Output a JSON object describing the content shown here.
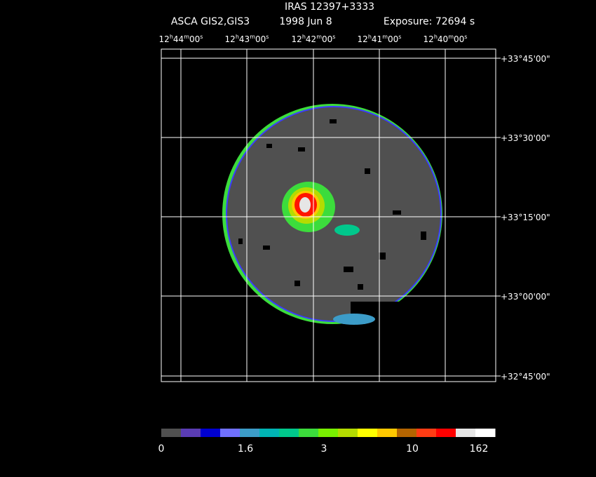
{
  "header": {
    "title": "IRAS 12397+3333",
    "instrument": "ASCA GIS2,GIS3",
    "date": "1998 Jun  8",
    "exposure": "Exposure: 72694 s"
  },
  "ra_labels": [
    [
      "12",
      "h",
      "44",
      "m",
      "00",
      "s"
    ],
    [
      "12",
      "h",
      "43",
      "m",
      "00",
      "s"
    ],
    [
      "12",
      "h",
      "42",
      "m",
      "00",
      "s"
    ],
    [
      "12",
      "h",
      "41",
      "m",
      "00",
      "s"
    ],
    [
      "12",
      "h",
      "40",
      "m",
      "00",
      "s"
    ]
  ],
  "dec_labels": [
    "+33°45'00\"",
    "+33°30'00\"",
    "+33°15'00\"",
    "+33°00'00\"",
    "+32°45'00\""
  ],
  "colorbar": {
    "colors": [
      "#505050",
      "#5a3cb4",
      "#0000d2",
      "#7070ff",
      "#3c9cc8",
      "#00b4b4",
      "#00c88c",
      "#3cdc3c",
      "#78f000",
      "#b4dc00",
      "#ffff00",
      "#ffc800",
      "#b46400",
      "#ff3c14",
      "#ff0000",
      "#e6e6e6",
      "#ffffff"
    ],
    "labels": [
      "0",
      "1.6",
      "3",
      "10",
      "162"
    ]
  }
}
